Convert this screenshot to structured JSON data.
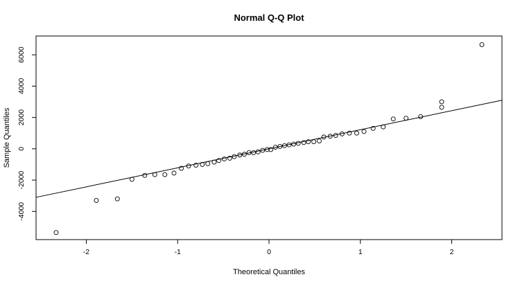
{
  "chart_data": {
    "type": "scatter",
    "title": "Normal Q-Q Plot",
    "xlabel": "Theoretical Quantiles",
    "ylabel": "Sample Quantiles",
    "xlim": [
      -2.55,
      2.55
    ],
    "ylim": [
      -5800,
      7200
    ],
    "x_ticks": [
      -2,
      -1,
      0,
      1,
      2
    ],
    "y_ticks": [
      -4000,
      -2000,
      0,
      2000,
      4000,
      6000
    ],
    "grid": false,
    "legend": "none",
    "reference_line": {
      "from": [
        -2.55,
        -3100
      ],
      "to": [
        2.55,
        3100
      ]
    },
    "points": [
      [
        -2.33,
        -5350
      ],
      [
        -1.89,
        -3300
      ],
      [
        -1.66,
        -3200
      ],
      [
        -1.5,
        -1950
      ],
      [
        -1.36,
        -1700
      ],
      [
        -1.25,
        -1650
      ],
      [
        -1.14,
        -1650
      ],
      [
        -1.04,
        -1550
      ],
      [
        -0.96,
        -1250
      ],
      [
        -0.88,
        -1100
      ],
      [
        -0.8,
        -1050
      ],
      [
        -0.73,
        -1000
      ],
      [
        -0.67,
        -950
      ],
      [
        -0.6,
        -850
      ],
      [
        -0.55,
        -750
      ],
      [
        -0.49,
        -650
      ],
      [
        -0.43,
        -600
      ],
      [
        -0.38,
        -500
      ],
      [
        -0.32,
        -400
      ],
      [
        -0.27,
        -350
      ],
      [
        -0.22,
        -250
      ],
      [
        -0.17,
        -250
      ],
      [
        -0.12,
        -200
      ],
      [
        -0.07,
        -100
      ],
      [
        -0.02,
        -50
      ],
      [
        0.02,
        -50
      ],
      [
        0.07,
        100
      ],
      [
        0.12,
        150
      ],
      [
        0.17,
        200
      ],
      [
        0.22,
        250
      ],
      [
        0.27,
        300
      ],
      [
        0.32,
        350
      ],
      [
        0.38,
        400
      ],
      [
        0.43,
        450
      ],
      [
        0.49,
        450
      ],
      [
        0.55,
        500
      ],
      [
        0.6,
        750
      ],
      [
        0.67,
        800
      ],
      [
        0.73,
        850
      ],
      [
        0.8,
        950
      ],
      [
        0.88,
        1000
      ],
      [
        0.96,
        1000
      ],
      [
        1.04,
        1100
      ],
      [
        1.14,
        1300
      ],
      [
        1.25,
        1400
      ],
      [
        1.36,
        1900
      ],
      [
        1.5,
        1950
      ],
      [
        1.66,
        2050
      ],
      [
        1.89,
        2650
      ],
      [
        1.89,
        3000
      ],
      [
        2.33,
        6650
      ]
    ]
  }
}
